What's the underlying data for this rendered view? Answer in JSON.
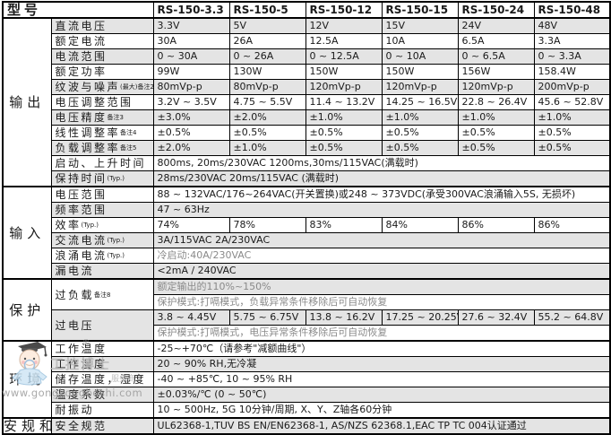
{
  "table": {
    "header": {
      "model_label": "型号",
      "models": [
        "RS-150-3.3",
        "RS-150-5",
        "RS-150-12",
        "RS-150-15",
        "RS-150-24",
        "RS-150-48"
      ]
    },
    "sections": [
      {
        "name": "输出",
        "rows": [
          {
            "label": "直流电压",
            "cells": [
              "3.3V",
              "5V",
              "12V",
              "15V",
              "24V",
              "48V"
            ],
            "shade": true
          },
          {
            "label": "额定电流",
            "cells": [
              "30A",
              "26A",
              "12.5A",
              "10A",
              "6.5A",
              "3.3A"
            ],
            "shade": false
          },
          {
            "label": "电流范围",
            "cells": [
              "0 ~ 30A",
              "0 ~ 26A",
              "0 ~ 12.5A",
              "0 ~ 10A",
              "0 ~ 6.5A",
              "0 ~ 3.3A"
            ],
            "shade": true
          },
          {
            "label": "额定功率",
            "cells": [
              "99W",
              "130W",
              "150W",
              "150W",
              "156W",
              "158.4W"
            ],
            "shade": false
          },
          {
            "label": "纹波与噪声",
            "note": "(最大)备注2",
            "cells": [
              "80mVp-p",
              "80mVp-p",
              "120mVp-p",
              "120mVp-p",
              "120mVp-p",
              "200mVp-p"
            ],
            "shade": true
          },
          {
            "label": "电压调整范围",
            "cells": [
              "3.2V ~ 3.5V",
              "4.75 ~ 5.5V",
              "11.4 ~ 13.2V",
              "14.25 ~ 16.5V",
              "22.8 ~ 26.4V",
              "45.6 ~ 52.8V"
            ],
            "shade": false
          },
          {
            "label": "电压精度",
            "note": "备注3",
            "cells": [
              "±3.0%",
              "±2.0%",
              "±1.0%",
              "±1.0%",
              "±1.0%",
              "±1.0%"
            ],
            "shade": true
          },
          {
            "label": "线性调整率",
            "note": "备注4",
            "cells": [
              "±0.5%",
              "±0.5%",
              "±0.5%",
              "±0.5%",
              "±0.5%",
              "±0.5%"
            ],
            "shade": false
          },
          {
            "label": "负载调整率",
            "note": "备注5",
            "cells": [
              "±2.0%",
              "±1.0%",
              "±0.5%",
              "±0.5%",
              "±0.5%",
              "±0.5%"
            ],
            "shade": true
          },
          {
            "label": "启动、上升时间",
            "span": "800ms, 20ms/230VAC   1200ms,30ms/115VAC(满载时)",
            "shade": false
          },
          {
            "label": "保持时间",
            "note": "(Typ.)",
            "span": "28ms/230VAC   20ms/115VAC (满载时)",
            "shade": true
          }
        ]
      },
      {
        "name": "输入",
        "rows": [
          {
            "label": "电压范围",
            "span": "88 ~ 132VAC/176~264VAC(开关置换)或248 ~ 373VDC(承受300VAC浪涌输入5S, 无损坏)",
            "shade": false
          },
          {
            "label": "频率范围",
            "span": "47 ~ 63Hz",
            "shade": true
          },
          {
            "label": "效率",
            "note": "(Typ.)",
            "cells": [
              "74%",
              "78%",
              "83%",
              "84%",
              "86%",
              "86%"
            ],
            "shade": false
          },
          {
            "label": "交流电流",
            "note": "(Typ.)",
            "span": "3A/115VAC   2A/230VAC",
            "shade": true
          },
          {
            "label": "浪涌电流",
            "note": "(Typ.)",
            "span": "冷启动:40A/230VAC",
            "shade": false,
            "muted": true
          },
          {
            "label": "漏电流",
            "span": "<2mA / 240VAC",
            "shade": true
          }
        ]
      },
      {
        "name": "保护",
        "rows": [
          {
            "label": "过负载",
            "note": "备注8",
            "rowspan": 2,
            "label_shade": false,
            "span": "额定输出的110%~150%",
            "shade": true,
            "muted": true
          },
          {
            "span": "保护模式:打嗝模式，负载异常条件移除后可自动恢复",
            "shade": false,
            "muted": true
          },
          {
            "label": "过电压",
            "rowspan": 2,
            "label_shade": true,
            "cells": [
              "3.8 ~ 4.45V",
              "5.75 ~ 6.75V",
              "13.8 ~ 16.2V",
              "17.25 ~ 20.25V",
              "27.6 ~ 32.4V",
              "55.2 ~ 64.8V"
            ],
            "shade": true
          },
          {
            "span": "保护模式:打嗝模式，电压异常条件移除后可自动恢复",
            "shade": false,
            "muted": true
          }
        ]
      },
      {
        "name": "环境",
        "rows": [
          {
            "label": "工作温度",
            "span": "-25~+70℃（请参考\"减额曲线\"）",
            "shade": false
          },
          {
            "label": "工作湿度",
            "span": "20 ~ 90% RH,无冷凝",
            "shade": true
          },
          {
            "label": "储存温度，湿度",
            "span": "-40 ~ +85℃, 10 ~ 95% RH",
            "shade": false
          },
          {
            "label": "温度系数",
            "span": "±0.03%/℃ (0 ~ 50℃)",
            "shade": true
          },
          {
            "label": "耐振动",
            "span": "10 ~ 500Hz, 5G 10分钟/周期, X、Y、Z轴各60分钟",
            "shade": false
          }
        ]
      },
      {
        "name": "安规和",
        "rows": [
          {
            "label": "安全规范",
            "span": "UL62368-1,TUV BS EN/EN62368-1, AS/NZS 62368.1,EAC TP TC 004认证通过",
            "shade": true
          }
        ]
      }
    ]
  },
  "watermark": {
    "reg": "®",
    "brand": "工控博士",
    "tagline": "服务商",
    "url": "www.gongkongboshi.com"
  },
  "colors": {
    "row_shade": "#e4e4e4",
    "border": "#000000",
    "muted_text": "#8a8a8a",
    "watermark_text": "#b9b9b9"
  }
}
